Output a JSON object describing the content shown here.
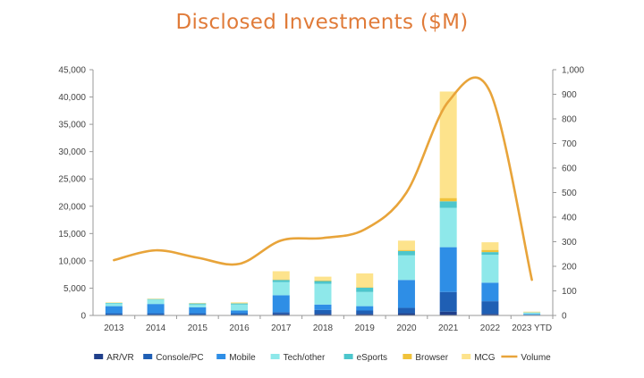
{
  "chart_data": {
    "type": "bar",
    "stacked": true,
    "title": "Disclosed Investments ($M)",
    "categories": [
      "2013",
      "2014",
      "2015",
      "2016",
      "2017",
      "2018",
      "2019",
      "2020",
      "2021",
      "2022",
      "2023 YTD"
    ],
    "ylim": [
      0,
      45000
    ],
    "yticks": [
      "0",
      "5,000",
      "10,000",
      "15,000",
      "20,000",
      "25,000",
      "30,000",
      "35,000",
      "40,000",
      "45,000"
    ],
    "y2lim": [
      0,
      1000
    ],
    "y2ticks": [
      "0",
      "100",
      "200",
      "300",
      "400",
      "500",
      "600",
      "700",
      "800",
      "900",
      "1,000"
    ],
    "grid": false,
    "legend_position": "bottom",
    "series": [
      {
        "name": "AR/VR",
        "color": "#1f3f8a",
        "values": [
          100,
          100,
          100,
          100,
          300,
          300,
          300,
          400,
          700,
          300,
          50
        ]
      },
      {
        "name": "Console/PC",
        "color": "#1f5fb4",
        "values": [
          300,
          300,
          300,
          300,
          300,
          700,
          600,
          1000,
          3600,
          2300,
          50
        ]
      },
      {
        "name": "Mobile",
        "color": "#2e8ee6",
        "values": [
          1300,
          1700,
          1100,
          500,
          3100,
          1000,
          800,
          5100,
          8200,
          3400,
          150
        ]
      },
      {
        "name": "Tech/other",
        "color": "#8ee8ea",
        "values": [
          500,
          800,
          500,
          1100,
          2400,
          3800,
          2600,
          4500,
          7200,
          5100,
          250
        ]
      },
      {
        "name": "eSports",
        "color": "#4cc6cc",
        "values": [
          100,
          100,
          200,
          200,
          400,
          500,
          800,
          800,
          1200,
          500,
          50
        ]
      },
      {
        "name": "Browser",
        "color": "#f0c23a",
        "values": [
          0,
          0,
          0,
          0,
          100,
          100,
          100,
          200,
          600,
          400,
          0
        ]
      },
      {
        "name": "MCG",
        "color": "#fde38c",
        "values": [
          100,
          100,
          100,
          200,
          1500,
          700,
          2500,
          1700,
          19500,
          1400,
          150
        ]
      }
    ],
    "line_series": {
      "name": "Volume",
      "color": "#e8a43a",
      "axis": "right",
      "values": [
        225,
        265,
        235,
        210,
        305,
        315,
        350,
        500,
        870,
        910,
        145
      ]
    }
  }
}
